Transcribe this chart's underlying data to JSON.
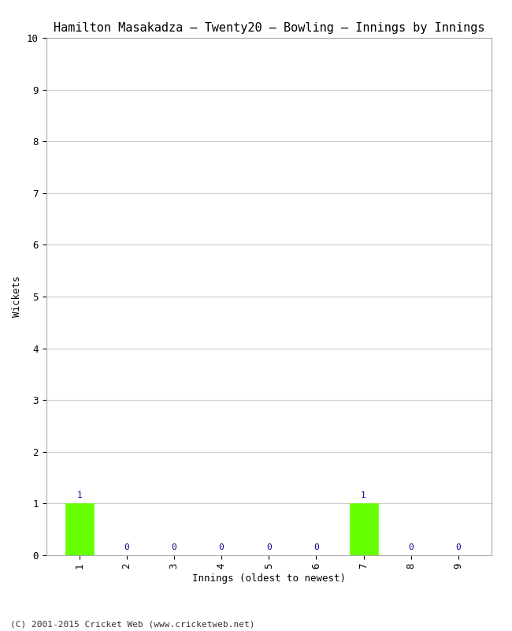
{
  "title": "Hamilton Masakadza – Twenty20 – Bowling – Innings by Innings",
  "xlabel": "Innings (oldest to newest)",
  "ylabel": "Wickets",
  "categories": [
    1,
    2,
    3,
    4,
    5,
    6,
    7,
    8,
    9
  ],
  "values": [
    1,
    0,
    0,
    0,
    0,
    0,
    1,
    0,
    0
  ],
  "bar_color": "#66ff00",
  "bar_edge_color": "#66ff00",
  "label_color": "#00008b",
  "ylim": [
    0,
    10
  ],
  "yticks": [
    0,
    1,
    2,
    3,
    4,
    5,
    6,
    7,
    8,
    9,
    10
  ],
  "background_color": "#ffffff",
  "grid_color": "#cccccc",
  "title_fontsize": 11,
  "axis_label_fontsize": 9,
  "tick_fontsize": 9,
  "bar_label_fontsize": 8,
  "footer_text": "(C) 2001-2015 Cricket Web (www.cricketweb.net)",
  "footer_fontsize": 8
}
